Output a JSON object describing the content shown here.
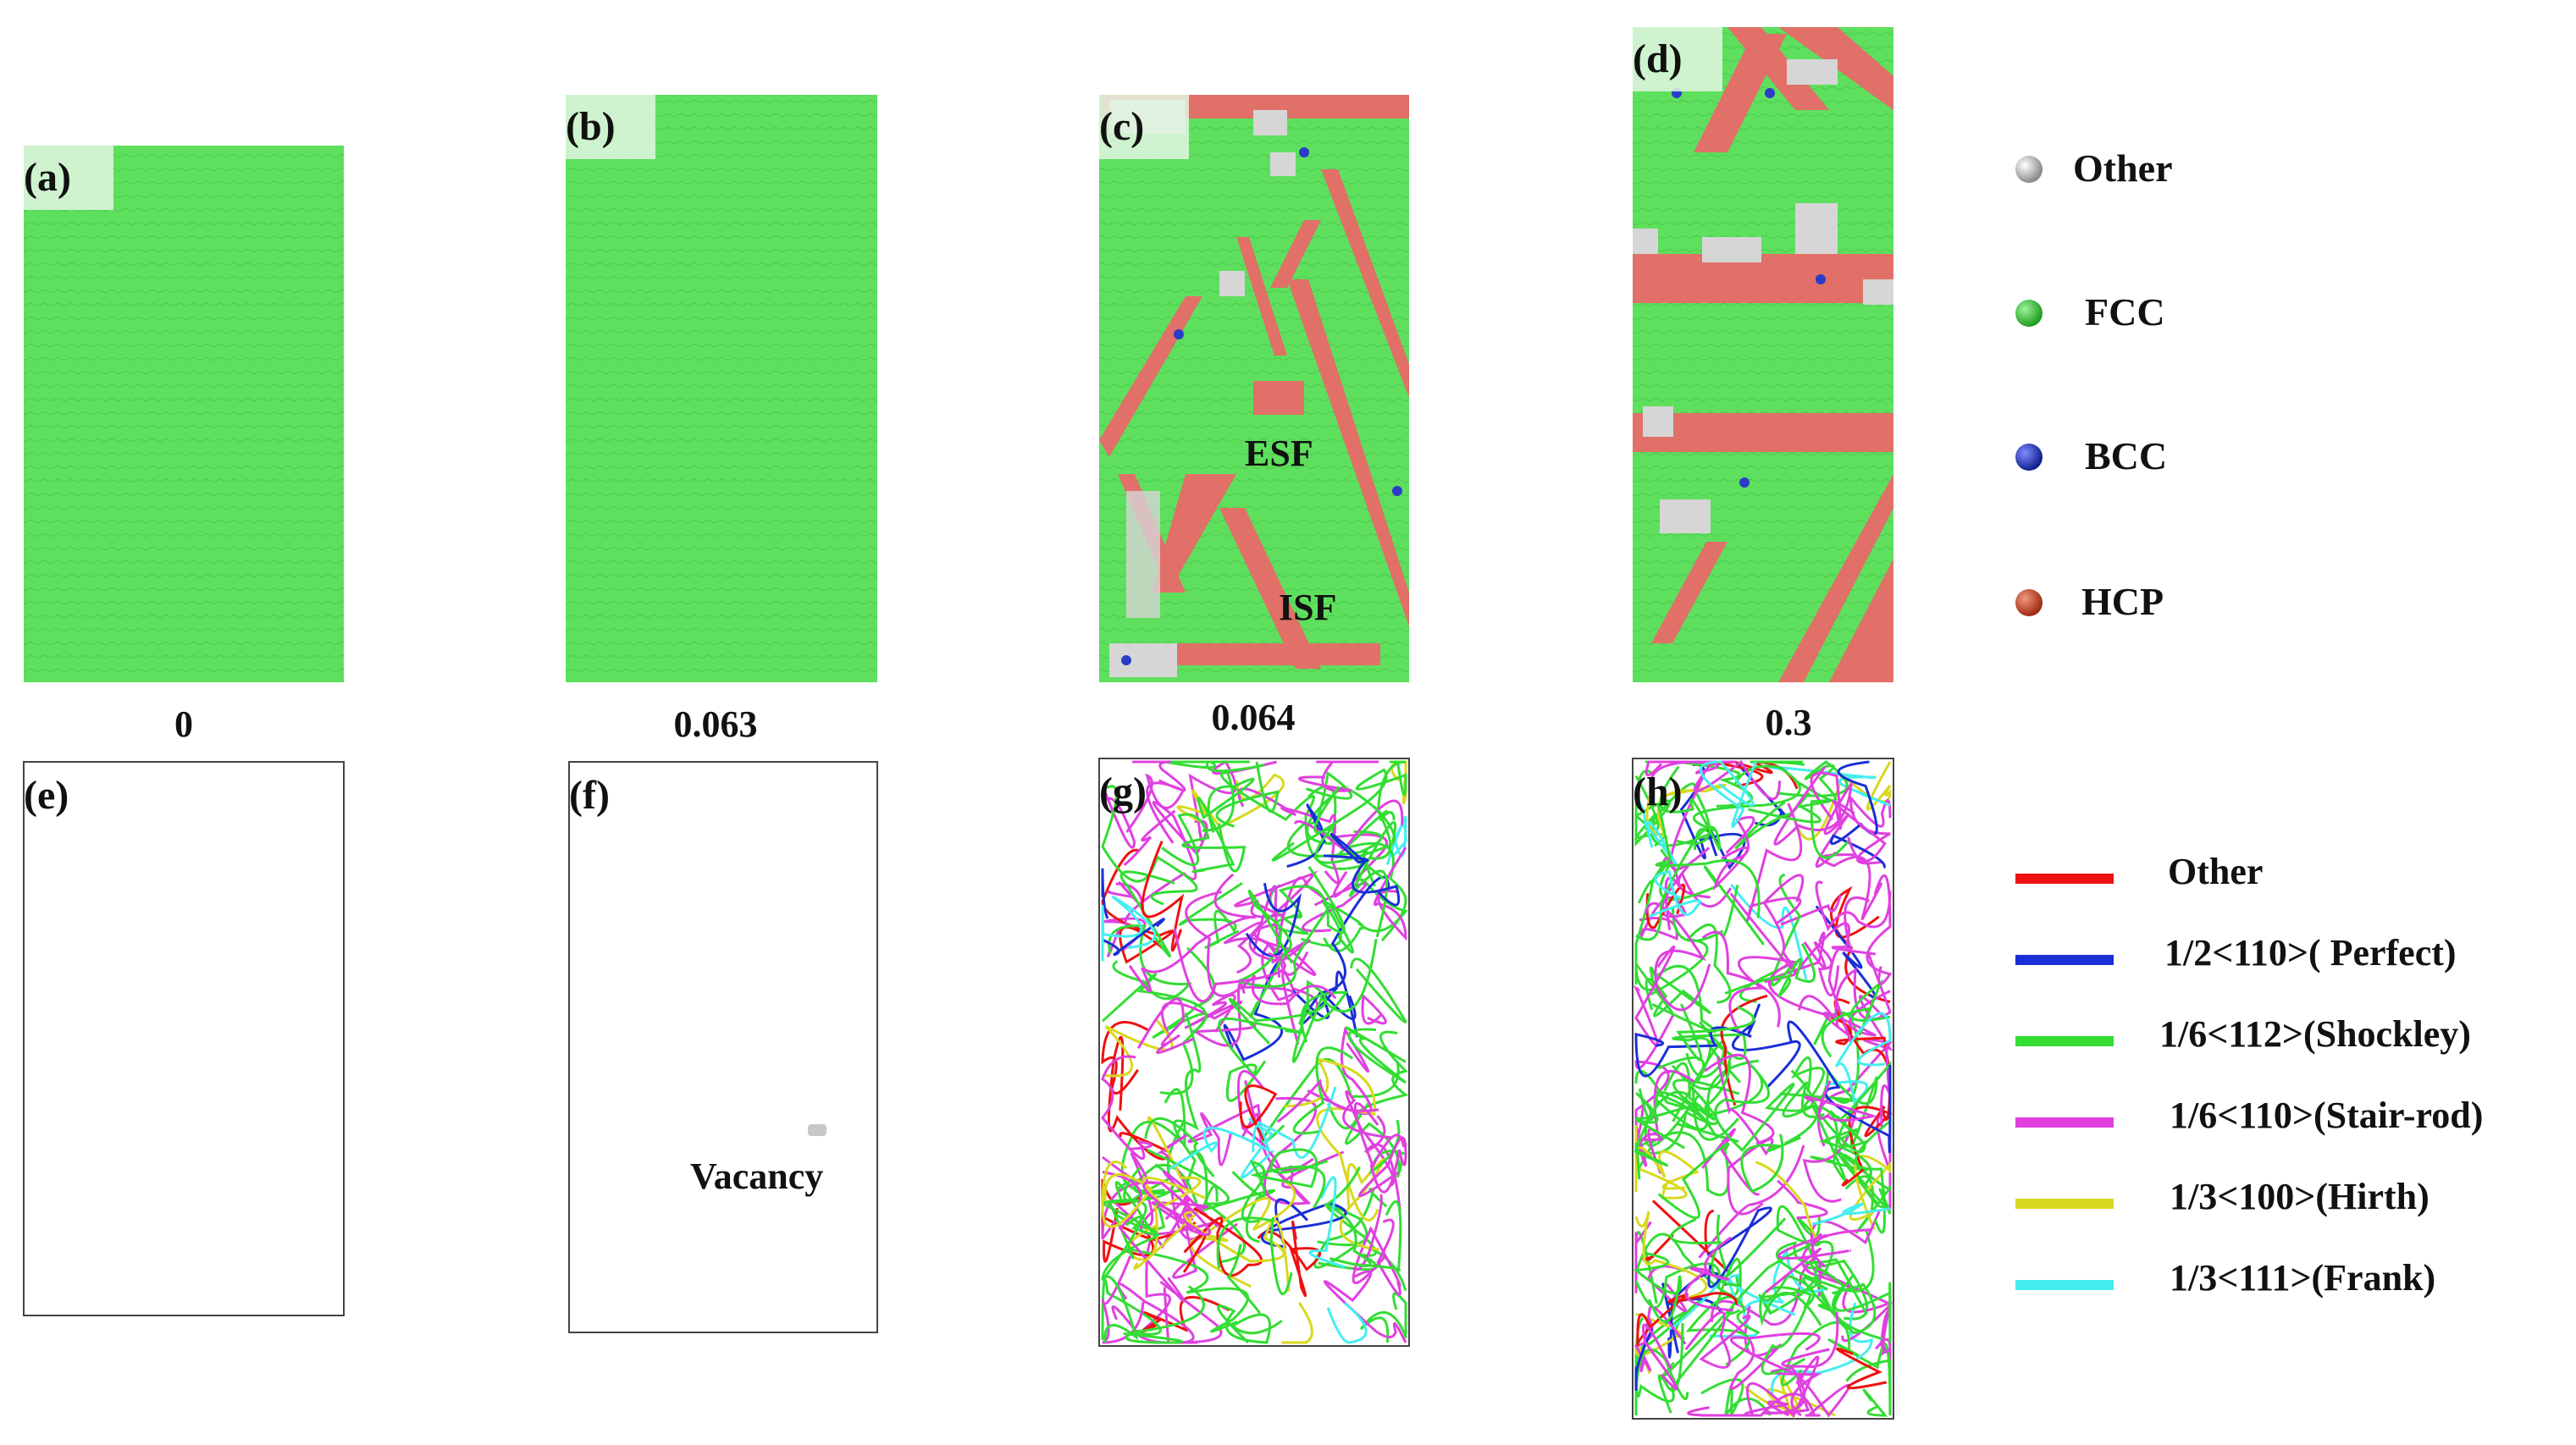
{
  "panels": [
    {
      "id": "a",
      "label": "(a)",
      "kind": "atomic",
      "strain": "0"
    },
    {
      "id": "b",
      "label": "(b)",
      "kind": "atomic",
      "strain": "0.063"
    },
    {
      "id": "c",
      "label": "(c)",
      "kind": "atomic",
      "strain": "0.064",
      "annotations": [
        "ESF",
        "ISF"
      ]
    },
    {
      "id": "d",
      "label": "(d)",
      "kind": "atomic",
      "strain": "0.3"
    },
    {
      "id": "e",
      "label": "(e)",
      "kind": "dislocation"
    },
    {
      "id": "f",
      "label": "(f)",
      "kind": "dislocation",
      "annotations": [
        "Vacancy"
      ]
    },
    {
      "id": "g",
      "label": "(g)",
      "kind": "dislocation"
    },
    {
      "id": "h",
      "label": "(h)",
      "kind": "dislocation"
    }
  ],
  "structure_legend": [
    {
      "label": "Other",
      "color": "#d0d0d0"
    },
    {
      "label": "FCC",
      "color": "#37c837"
    },
    {
      "label": "BCC",
      "color": "#1f35c8"
    },
    {
      "label": "HCP",
      "color": "#c84a2e"
    }
  ],
  "dislocation_legend": [
    {
      "label": "Other",
      "color": "#ee1111"
    },
    {
      "label": "1/2<110>( Perfect)",
      "color": "#1a2fd6"
    },
    {
      "label": "1/6<112>(Shockley)",
      "color": "#33dd33"
    },
    {
      "label": "1/6<110>(Stair-rod)",
      "color": "#e040e0"
    },
    {
      "label": "1/3<100>(Hirth)",
      "color": "#d8d820"
    },
    {
      "label": "1/3<111>(Frank)",
      "color": "#44eef0"
    }
  ],
  "colors": {
    "fcc": "#5ee05e",
    "hcp": "#e07068",
    "other": "#d6d6d6",
    "bcc": "#2a3cc8"
  }
}
